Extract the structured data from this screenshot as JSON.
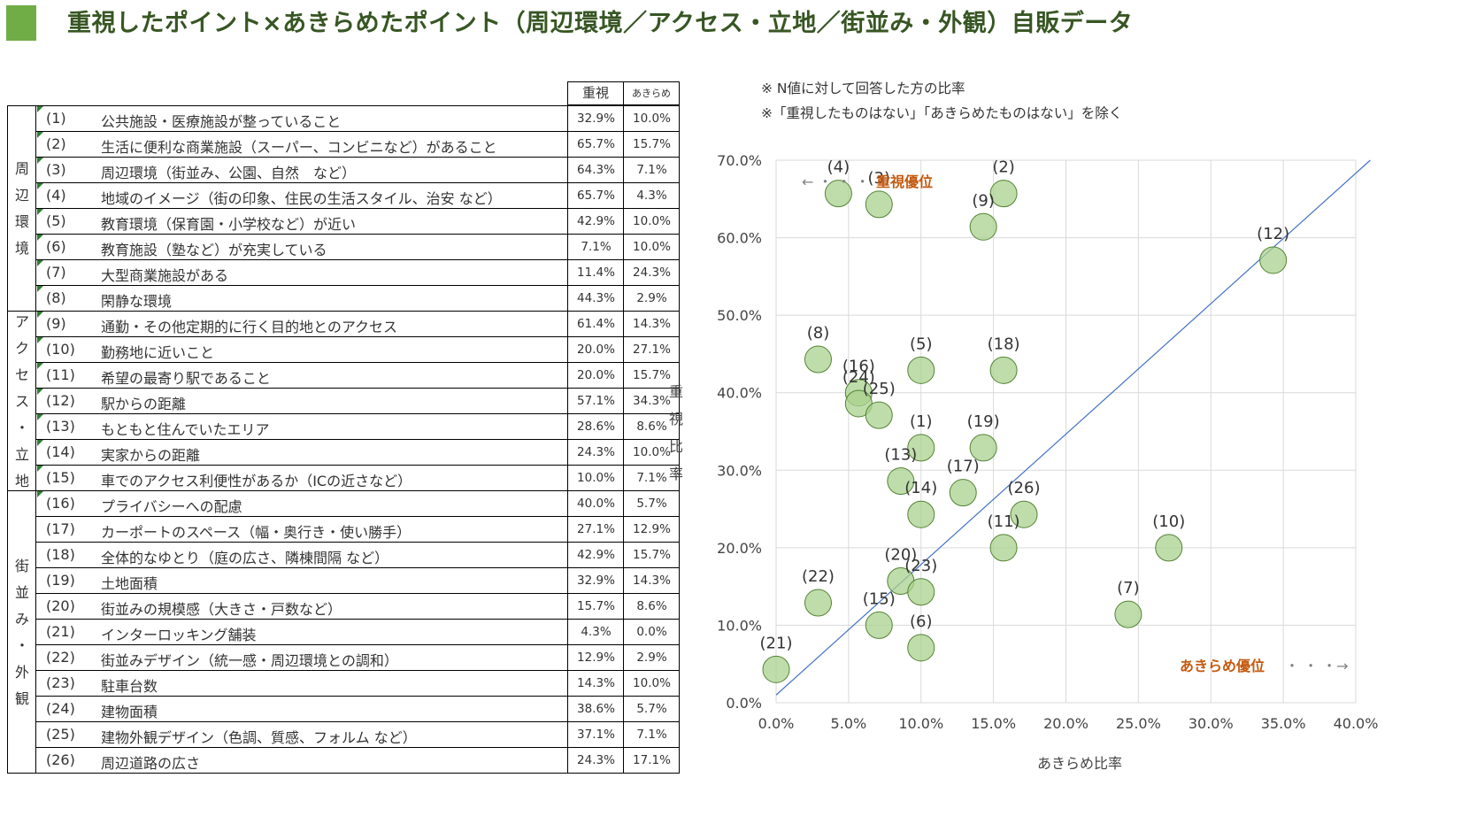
{
  "title": "重視したポイント×あきらめたポイント（周辺環境／アクセス・立地／街並み・外観）自販データ",
  "colors": {
    "accent": "#70ad47",
    "title": "#375623",
    "bubble_fill": "#a9d18e",
    "bubble_stroke": "#548235",
    "priority": "#c55a11",
    "diagonal": "#4472c4"
  },
  "table": {
    "headers": {
      "emphasis": "重視",
      "giveup": "あきらめ"
    },
    "groups": [
      {
        "label": "周辺環境",
        "rows": [
          {
            "no": "(1)",
            "label": "公共施設・医療施設が整っていること",
            "emphasis": "32.9%",
            "giveup": "10.0%"
          },
          {
            "no": "(2)",
            "label": "生活に便利な商業施設（スーパー、コンビニなど）があること",
            "emphasis": "65.7%",
            "giveup": "15.7%"
          },
          {
            "no": "(3)",
            "label": "周辺環境（街並み、公園、自然　など）",
            "emphasis": "64.3%",
            "giveup": "7.1%"
          },
          {
            "no": "(4)",
            "label": "地域のイメージ（街の印象、住民の生活スタイル、治安 など）",
            "emphasis": "65.7%",
            "giveup": "4.3%"
          },
          {
            "no": "(5)",
            "label": "教育環境（保育園・小学校など）が近い",
            "emphasis": "42.9%",
            "giveup": "10.0%"
          },
          {
            "no": "(6)",
            "label": "教育施設（塾など）が充実している",
            "emphasis": "7.1%",
            "giveup": "10.0%"
          },
          {
            "no": "(7)",
            "label": "大型商業施設がある",
            "emphasis": "11.4%",
            "giveup": "24.3%"
          },
          {
            "no": "(8)",
            "label": "閑静な環境",
            "emphasis": "44.3%",
            "giveup": "2.9%"
          }
        ]
      },
      {
        "label": "アクセス・立地",
        "rows": [
          {
            "no": "(9)",
            "label": "通勤・その他定期的に行く目的地とのアクセス",
            "emphasis": "61.4%",
            "giveup": "14.3%"
          },
          {
            "no": "(10)",
            "label": "勤務地に近いこと",
            "emphasis": "20.0%",
            "giveup": "27.1%"
          },
          {
            "no": "(11)",
            "label": "希望の最寄り駅であること",
            "emphasis": "20.0%",
            "giveup": "15.7%"
          },
          {
            "no": "(12)",
            "label": "駅からの距離",
            "emphasis": "57.1%",
            "giveup": "34.3%"
          },
          {
            "no": "(13)",
            "label": "もともと住んでいたエリア",
            "emphasis": "28.6%",
            "giveup": "8.6%"
          },
          {
            "no": "(14)",
            "label": "実家からの距離",
            "emphasis": "24.3%",
            "giveup": "10.0%"
          },
          {
            "no": "(15)",
            "label": "車でのアクセス利便性があるか（ICの近さなど）",
            "emphasis": "10.0%",
            "giveup": "7.1%"
          }
        ]
      },
      {
        "label": "街並み・外観",
        "rows": [
          {
            "no": "(16)",
            "label": "プライバシーへの配慮",
            "emphasis": "40.0%",
            "giveup": "5.7%"
          },
          {
            "no": "(17)",
            "label": "カーポートのスペース（幅・奥行き・使い勝手）",
            "emphasis": "27.1%",
            "giveup": "12.9%"
          },
          {
            "no": "(18)",
            "label": "全体的なゆとり（庭の広さ、隣棟間隔 など）",
            "emphasis": "42.9%",
            "giveup": "15.7%"
          },
          {
            "no": "(19)",
            "label": "土地面積",
            "emphasis": "32.9%",
            "giveup": "14.3%"
          },
          {
            "no": "(20)",
            "label": "街並みの規模感（大きさ・戸数など）",
            "emphasis": "15.7%",
            "giveup": "8.6%"
          },
          {
            "no": "(21)",
            "label": "インターロッキング舗装",
            "emphasis": "4.3%",
            "giveup": "0.0%"
          },
          {
            "no": "(22)",
            "label": "街並みデザイン（統一感・周辺環境との調和）",
            "emphasis": "12.9%",
            "giveup": "2.9%"
          },
          {
            "no": "(23)",
            "label": "駐車台数",
            "emphasis": "14.3%",
            "giveup": "10.0%"
          },
          {
            "no": "(24)",
            "label": "建物面積",
            "emphasis": "38.6%",
            "giveup": "5.7%"
          },
          {
            "no": "(25)",
            "label": "建物外観デザイン（色調、質感、フォルム など）",
            "emphasis": "37.1%",
            "giveup": "7.1%"
          },
          {
            "no": "(26)",
            "label": "周辺道路の広さ",
            "emphasis": "24.3%",
            "giveup": "17.1%"
          }
        ]
      }
    ]
  },
  "notes": [
    "※ N値に対して回答した方の比率",
    "※「重視したものはない」「あきらめたものはない」を除く"
  ],
  "chart_data": {
    "type": "scatter",
    "xlabel": "あきらめ比率",
    "ylabel": "重視比率",
    "xlim": [
      0,
      40
    ],
    "ylim": [
      0,
      70
    ],
    "xticks": [
      "0.0%",
      "5.0%",
      "10.0%",
      "15.0%",
      "20.0%",
      "25.0%",
      "30.0%",
      "35.0%",
      "40.0%"
    ],
    "yticks": [
      "0.0%",
      "10.0%",
      "20.0%",
      "30.0%",
      "40.0%",
      "50.0%",
      "60.0%",
      "70.0%"
    ],
    "annotations": {
      "emphasis_priority": "重視優位",
      "giveup_priority": "あきらめ優位",
      "arrow_left": "← ・ ・ ・",
      "arrow_right": "・ ・ ・→"
    },
    "diagonal": [
      [
        0,
        1
      ],
      [
        41,
        70
      ]
    ],
    "points": [
      {
        "label": "(1)",
        "x": 10.0,
        "y": 32.9,
        "lpos": "up"
      },
      {
        "label": "(2)",
        "x": 15.7,
        "y": 65.7,
        "lpos": "up"
      },
      {
        "label": "(3)",
        "x": 7.1,
        "y": 64.3,
        "lpos": "up"
      },
      {
        "label": "(4)",
        "x": 4.3,
        "y": 65.7,
        "lpos": "up"
      },
      {
        "label": "(5)",
        "x": 10.0,
        "y": 42.9,
        "lpos": "up"
      },
      {
        "label": "(6)",
        "x": 10.0,
        "y": 7.1,
        "lpos": "up"
      },
      {
        "label": "(7)",
        "x": 24.3,
        "y": 11.4,
        "lpos": "up"
      },
      {
        "label": "(8)",
        "x": 2.9,
        "y": 44.3,
        "lpos": "up"
      },
      {
        "label": "(9)",
        "x": 14.3,
        "y": 61.4,
        "lpos": "up"
      },
      {
        "label": "(10)",
        "x": 27.1,
        "y": 20.0,
        "lpos": "up"
      },
      {
        "label": "(11)",
        "x": 15.7,
        "y": 20.0,
        "lpos": "up"
      },
      {
        "label": "(12)",
        "x": 34.3,
        "y": 57.1,
        "lpos": "up"
      },
      {
        "label": "(13)",
        "x": 8.6,
        "y": 28.6,
        "lpos": "up"
      },
      {
        "label": "(14)",
        "x": 10.0,
        "y": 24.3,
        "lpos": "up"
      },
      {
        "label": "(15)",
        "x": 7.1,
        "y": 10.0,
        "lpos": "up"
      },
      {
        "label": "(16)",
        "x": 5.7,
        "y": 40.0,
        "lpos": "up"
      },
      {
        "label": "(17)",
        "x": 12.9,
        "y": 27.1,
        "lpos": "up"
      },
      {
        "label": "(18)",
        "x": 15.7,
        "y": 42.9,
        "lpos": "up"
      },
      {
        "label": "(19)",
        "x": 14.3,
        "y": 32.9,
        "lpos": "up"
      },
      {
        "label": "(20)",
        "x": 8.6,
        "y": 15.7,
        "lpos": "up"
      },
      {
        "label": "(21)",
        "x": 0.0,
        "y": 4.3,
        "lpos": "up"
      },
      {
        "label": "(22)",
        "x": 2.9,
        "y": 12.9,
        "lpos": "up"
      },
      {
        "label": "(23)",
        "x": 10.0,
        "y": 14.3,
        "lpos": "up"
      },
      {
        "label": "(24)",
        "x": 5.7,
        "y": 38.6,
        "lpos": "up"
      },
      {
        "label": "(25)",
        "x": 7.1,
        "y": 37.1,
        "lpos": "up"
      },
      {
        "label": "(26)",
        "x": 17.1,
        "y": 24.3,
        "lpos": "up"
      }
    ]
  }
}
